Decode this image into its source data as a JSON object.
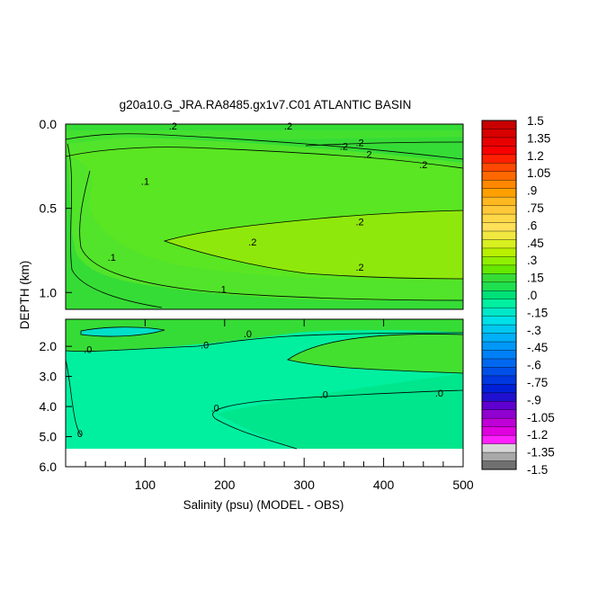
{
  "chart_data": {
    "type": "heatmap",
    "title": "g20a10.G_JRA.RA8485.gx1v7.C01 ATLANTIC BASIN",
    "xlabel": "Salinity (psu) (MODEL - OBS)",
    "ylabel": "DEPTH (km)",
    "xlim": [
      0,
      500
    ],
    "x_ticks": [
      "100",
      "200",
      "300",
      "400",
      "500"
    ],
    "panels": [
      {
        "name": "upper",
        "ylim": [
          0.0,
          1.1
        ],
        "y_ticks": [
          "0.0",
          "0.5",
          "1.0"
        ],
        "contour_labels": [
          {
            "text": ".2",
            "x": 135,
            "y": 0.01
          },
          {
            "text": ".2",
            "x": 280,
            "y": 0.01
          },
          {
            "text": ".2",
            "x": 370,
            "y": 0.11
          },
          {
            "text": ".2",
            "x": 350,
            "y": 0.13
          },
          {
            "text": ".2",
            "x": 380,
            "y": 0.18
          },
          {
            "text": ".2",
            "x": 450,
            "y": 0.24
          },
          {
            "text": ".1",
            "x": 100,
            "y": 0.34
          },
          {
            "text": ".2",
            "x": 370,
            "y": 0.58
          },
          {
            "text": ".2",
            "x": 235,
            "y": 0.7
          },
          {
            "text": ".1",
            "x": 58,
            "y": 0.79
          },
          {
            "text": ".2",
            "x": 370,
            "y": 0.85
          },
          {
            "text": ".1",
            "x": 197,
            "y": 0.98
          }
        ]
      },
      {
        "name": "lower",
        "ylim": [
          1.1,
          6.0
        ],
        "y_ticks": [
          "2.0",
          "3.0",
          "4.0",
          "5.0",
          "6.0"
        ],
        "contour_labels": [
          {
            "text": ".0",
            "x": 229,
            "y": 1.58
          },
          {
            "text": ".0",
            "x": 175,
            "y": 1.95
          },
          {
            "text": ".0",
            "x": 28,
            "y": 2.1
          },
          {
            "text": ".0",
            "x": 325,
            "y": 3.6
          },
          {
            "text": ".0",
            "x": 470,
            "y": 3.55
          },
          {
            "text": ".0",
            "x": 188,
            "y": 4.05
          },
          {
            "text": "0",
            "x": 18,
            "y": 4.9
          }
        ]
      }
    ],
    "colorbar": {
      "labels": [
        "1.5",
        "1.35",
        "1.2",
        "1.05",
        ".9",
        ".75",
        ".6",
        ".45",
        ".3",
        ".15",
        ".0",
        "-.15",
        "-.3",
        "-.45",
        "-.6",
        "-.75",
        "-.9",
        "-1.05",
        "-1.2",
        "-1.35",
        "-1.5"
      ],
      "colors": [
        "#c80000",
        "#d80000",
        "#e80000",
        "#f80000",
        "#ff2000",
        "#ff4800",
        "#ff6800",
        "#ff8800",
        "#ffa000",
        "#ffb820",
        "#ffc838",
        "#ffd848",
        "#ffe058",
        "#f0e840",
        "#d8f020",
        "#b8f000",
        "#90f000",
        "#66e800",
        "#36dc36",
        "#20e050",
        "#00e078",
        "#00f0a0",
        "#00e8c8",
        "#00e0e8",
        "#00c8f0",
        "#00b0f8",
        "#0098f8",
        "#0080f8",
        "#0068f0",
        "#0050e8",
        "#0038e0",
        "#0020d8",
        "#2010d0",
        "#6000d0",
        "#9000d0",
        "#c000d8",
        "#e000e0",
        "#ff20ff",
        "#d8d8d8",
        "#a8a8a8",
        "#707070"
      ]
    }
  }
}
